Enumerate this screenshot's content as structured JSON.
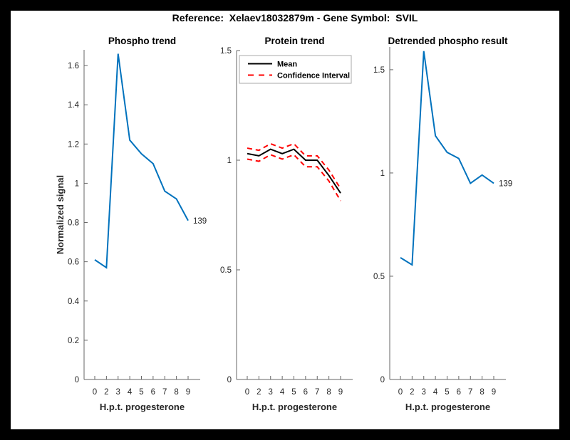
{
  "figure": {
    "title": "Reference:  Xelaev18032879m - Gene Symbol:  SVIL"
  },
  "chart_data": [
    {
      "type": "line",
      "name": "phospho-trend",
      "title": "Phospho trend",
      "xlabel": "H.p.t. progesterone",
      "ylabel": "Normalized signal",
      "x_ticklabels": [
        "0",
        "2",
        "3",
        "4",
        "5",
        "6",
        "7",
        "8",
        "9"
      ],
      "y_ticks": [
        0,
        0.2,
        0.4,
        0.6,
        0.8,
        1,
        1.2,
        1.4,
        1.6
      ],
      "y_ticklabels": [
        "0",
        "0.2",
        "0.4",
        "0.6",
        "0.8",
        "1",
        "1.2",
        "1.4",
        "1.6"
      ],
      "ylim": [
        0,
        1.68
      ],
      "grid": false,
      "series": [
        {
          "name": "phospho-signal",
          "color": "#0072BD",
          "dashed": false,
          "values": [
            0.61,
            0.57,
            1.66,
            1.22,
            1.15,
            1.1,
            0.96,
            0.92,
            0.81
          ]
        }
      ],
      "end_label": "139"
    },
    {
      "type": "line",
      "name": "protein-trend",
      "title": "Protein trend",
      "xlabel": "H.p.t. progesterone",
      "ylabel": "",
      "x_ticklabels": [
        "0",
        "2",
        "3",
        "4",
        "5",
        "6",
        "7",
        "8",
        "9"
      ],
      "y_ticks": [
        0,
        0.5,
        1,
        1.5
      ],
      "y_ticklabels": [
        "0",
        "0.5",
        "1",
        "1.5"
      ],
      "ylim": [
        0,
        1.5
      ],
      "grid": false,
      "legend": {
        "position": "top-left",
        "entries": [
          "Mean",
          "Confidence Interval"
        ]
      },
      "series": [
        {
          "name": "Mean",
          "color": "#000000",
          "dashed": false,
          "values": [
            1.03,
            1.02,
            1.05,
            1.03,
            1.05,
            1.0,
            1.0,
            0.93,
            0.85
          ]
        },
        {
          "name": "Confidence Interval upper",
          "color": "#FF0000",
          "dashed": true,
          "values": [
            1.055,
            1.045,
            1.075,
            1.055,
            1.075,
            1.02,
            1.02,
            0.955,
            0.87
          ]
        },
        {
          "name": "Confidence Interval lower",
          "color": "#FF0000",
          "dashed": true,
          "values": [
            1.005,
            0.995,
            1.025,
            1.005,
            1.025,
            0.97,
            0.97,
            0.905,
            0.815
          ]
        }
      ]
    },
    {
      "type": "line",
      "name": "detrended-phospho-result",
      "title": "Detrended phospho result",
      "xlabel": "H.p.t. progesterone",
      "ylabel": "",
      "x_ticklabels": [
        "0",
        "2",
        "3",
        "4",
        "5",
        "6",
        "7",
        "8",
        "9"
      ],
      "y_ticks": [
        0,
        0.5,
        1,
        1.5
      ],
      "y_ticklabels": [
        "0",
        "0.5",
        "1",
        "1.5"
      ],
      "ylim": [
        0,
        1.61
      ],
      "grid": false,
      "series": [
        {
          "name": "detrended-phospho",
          "color": "#0072BD",
          "dashed": false,
          "values": [
            0.59,
            0.555,
            1.59,
            1.18,
            1.1,
            1.07,
            0.95,
            0.99,
            0.95
          ]
        }
      ],
      "end_label": "139"
    }
  ]
}
